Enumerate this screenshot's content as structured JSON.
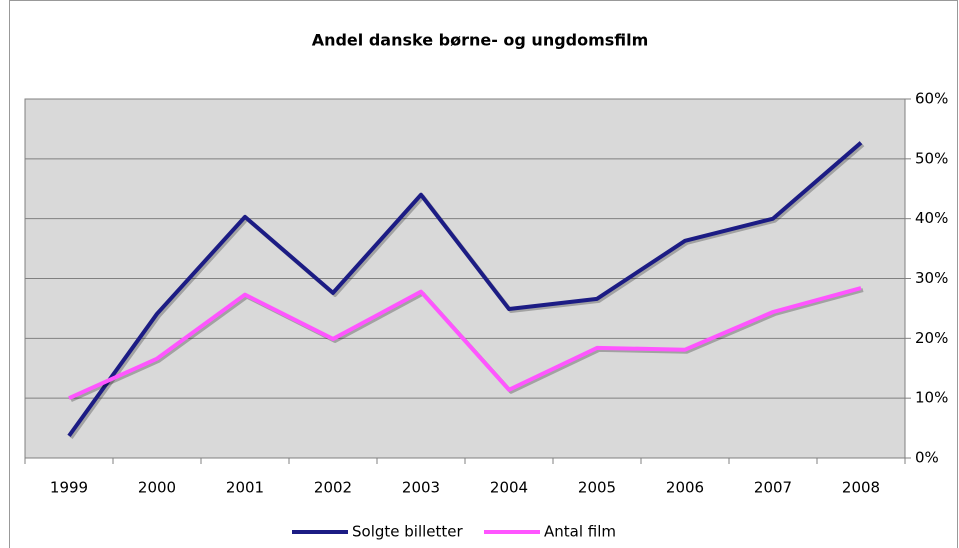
{
  "chart_data": {
    "type": "line",
    "title": "Andel danske børne- og ungdomsfilm",
    "categories": [
      "1999",
      "2000",
      "2001",
      "2002",
      "2003",
      "2004",
      "2005",
      "2006",
      "2007",
      "2008"
    ],
    "series": [
      {
        "name": "Solgte billetter",
        "color": "#1c1c84",
        "values": [
          3.7,
          24.1,
          40.3,
          27.6,
          44,
          24.9,
          26.6,
          36.3,
          40,
          52.7
        ]
      },
      {
        "name": "Antal film",
        "color": "#ff55ff",
        "values": [
          10,
          16.6,
          27.3,
          19.9,
          27.8,
          11.4,
          18.4,
          18.1,
          24.4,
          28.4
        ]
      }
    ],
    "ylim": [
      0,
      60
    ],
    "yticks": [
      {
        "value": 0,
        "label": "0%"
      },
      {
        "value": 10,
        "label": "10%"
      },
      {
        "value": 20,
        "label": "20%"
      },
      {
        "value": 30,
        "label": "30%"
      },
      {
        "value": 40,
        "label": "40%"
      },
      {
        "value": 50,
        "label": "50%"
      },
      {
        "value": 60,
        "label": "60%"
      }
    ],
    "y_axis_side": "right",
    "grid": true,
    "legend": "bottom"
  }
}
